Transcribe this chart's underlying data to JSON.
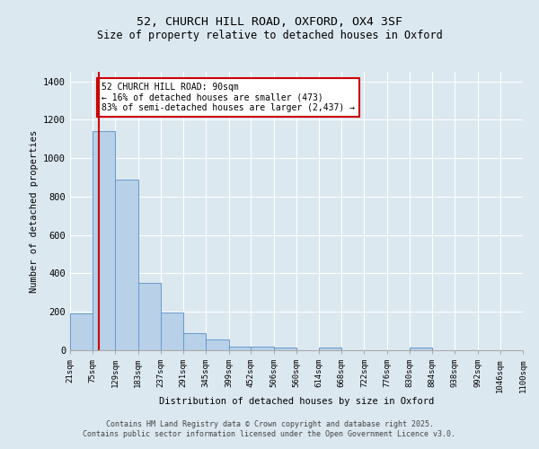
{
  "title1": "52, CHURCH HILL ROAD, OXFORD, OX4 3SF",
  "title2": "Size of property relative to detached houses in Oxford",
  "xlabel": "Distribution of detached houses by size in Oxford",
  "ylabel": "Number of detached properties",
  "bin_edges": [
    21,
    75,
    129,
    183,
    237,
    291,
    345,
    399,
    452,
    506,
    560,
    614,
    668,
    722,
    776,
    830,
    884,
    938,
    992,
    1046,
    1100
  ],
  "bar_heights": [
    190,
    1140,
    890,
    350,
    195,
    90,
    55,
    20,
    18,
    12,
    0,
    12,
    0,
    0,
    0,
    12,
    0,
    0,
    0,
    0
  ],
  "bar_color": "#b8d0e8",
  "bar_edge_color": "#6699cc",
  "background_color": "#dce8f0",
  "grid_color": "#ffffff",
  "red_line_x": 90,
  "annotation_text": "52 CHURCH HILL ROAD: 90sqm\n← 16% of detached houses are smaller (473)\n83% of semi-detached houses are larger (2,437) →",
  "annotation_box_color": "#ffffff",
  "annotation_box_edge_color": "#cc0000",
  "ylim": [
    0,
    1450
  ],
  "yticks": [
    0,
    200,
    400,
    600,
    800,
    1000,
    1200,
    1400
  ],
  "footer1": "Contains HM Land Registry data © Crown copyright and database right 2025.",
  "footer2": "Contains public sector information licensed under the Open Government Licence v3.0."
}
